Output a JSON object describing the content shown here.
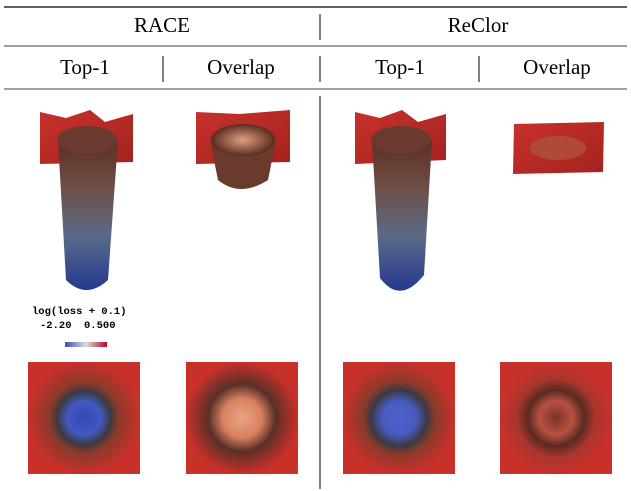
{
  "header": {
    "groups": [
      "RACE",
      "ReClor"
    ],
    "columns": [
      "Top-1",
      "Overlap",
      "Top-1",
      "Overlap"
    ]
  },
  "colorbar": {
    "title": "log(loss + 0.1)",
    "min_label": "-2.20",
    "max_label": "0.500"
  }
}
